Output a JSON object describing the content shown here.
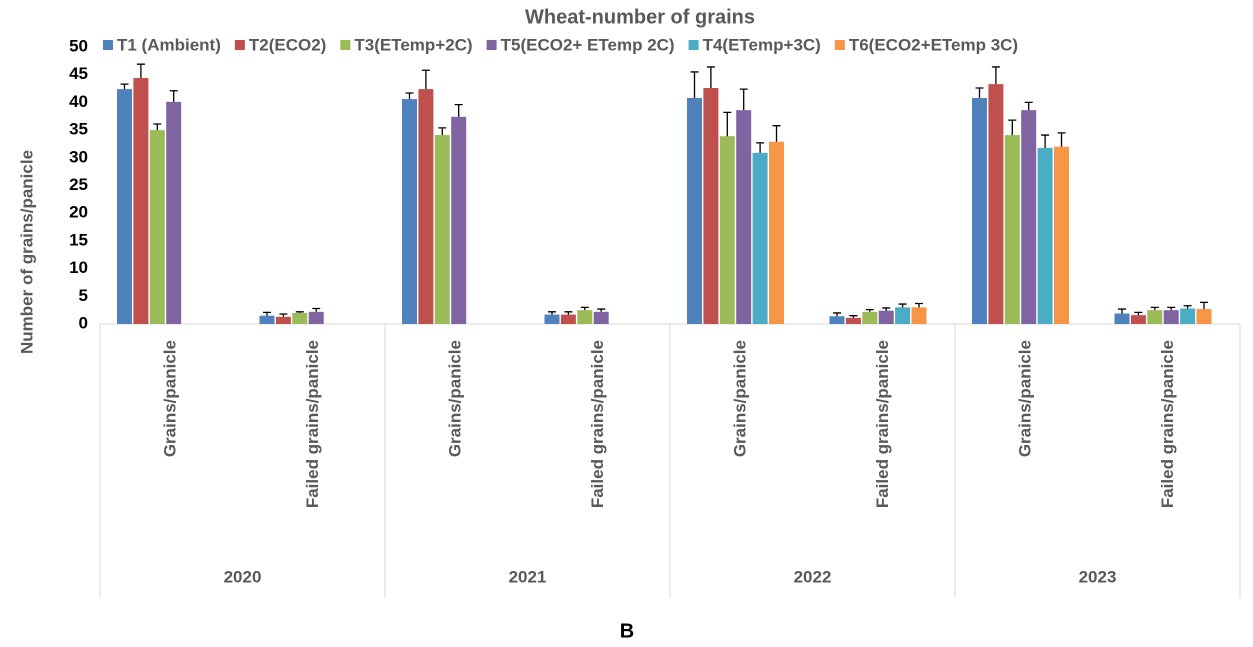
{
  "chart_data": {
    "type": "bar",
    "title": "Wheat-number of grains",
    "y_label": "Number of grains/panicle",
    "caption": "B",
    "categories": [
      "Grains/panicle",
      "Failed grains/panicle",
      "Grains/panicle",
      "Failed grains/panicle",
      "Grains/panicle",
      "Failed grains/panicle",
      "Grains/panicle",
      "Failed grains/panicle"
    ],
    "category_groups": [
      "2020",
      "2021",
      "2022",
      "2023"
    ],
    "series": [
      {
        "name": "T1 (Ambient)",
        "color": "#4f81bd",
        "values": [
          42.4,
          1.5,
          40.6,
          1.7,
          40.8,
          1.4,
          40.8,
          1.9
        ],
        "errors": [
          0.9,
          0.6,
          1.1,
          0.5,
          4.7,
          0.6,
          1.8,
          0.8
        ]
      },
      {
        "name": "T2(ECO2)",
        "color": "#c0504d",
        "values": [
          44.4,
          1.3,
          42.4,
          1.7,
          42.6,
          1.1,
          43.3,
          1.6
        ],
        "errors": [
          2.5,
          0.5,
          3.4,
          0.5,
          3.8,
          0.4,
          3.1,
          0.5
        ]
      },
      {
        "name": "T3(ETemp+2C)",
        "color": "#9bbb59",
        "values": [
          35.0,
          2.0,
          34.1,
          2.5,
          33.9,
          2.2,
          34.1,
          2.5
        ],
        "errors": [
          1.1,
          0.2,
          1.3,
          0.5,
          4.3,
          0.4,
          2.7,
          0.5
        ]
      },
      {
        "name": "T5(ECO2+ ETemp 2C)",
        "color": "#8064a2",
        "values": [
          40.1,
          2.2,
          37.4,
          2.2,
          38.6,
          2.4,
          38.6,
          2.5
        ],
        "errors": [
          2.0,
          0.6,
          2.2,
          0.5,
          3.8,
          0.5,
          1.4,
          0.5
        ]
      },
      {
        "name": "T4(ETemp+3C)",
        "color": "#4bacc6",
        "values": [
          null,
          null,
          null,
          null,
          30.9,
          3.0,
          31.8,
          2.8
        ],
        "errors": [
          null,
          null,
          null,
          null,
          1.8,
          0.6,
          2.3,
          0.5
        ]
      },
      {
        "name": "T6(ECO2+ETemp 3C)",
        "color": "#f79646",
        "values": [
          null,
          null,
          null,
          null,
          32.9,
          3.0,
          32.0,
          2.7
        ],
        "errors": [
          null,
          null,
          null,
          null,
          2.9,
          0.7,
          2.5,
          1.2
        ]
      }
    ],
    "ylim": [
      0,
      50
    ],
    "yticks": [
      0,
      5,
      10,
      15,
      20,
      25,
      30,
      35,
      40,
      45,
      50
    ],
    "grid": false,
    "legend": "top"
  }
}
